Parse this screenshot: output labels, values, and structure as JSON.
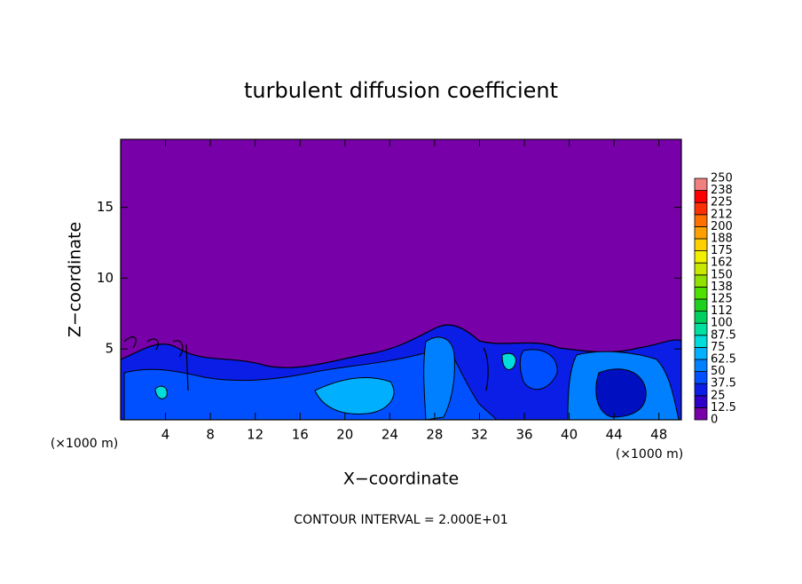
{
  "chart_data": {
    "type": "contour",
    "title": "turbulent diffusion coefficient",
    "x_label": "X−coordinate",
    "y_label": "Z−coordinate",
    "x_unit_label": "(×1000 m)",
    "y_unit_label": "(×1000 m)",
    "footer": "CONTOUR INTERVAL = 2.000E+01",
    "xlim": [
      0,
      50
    ],
    "ylim": [
      0,
      19.8
    ],
    "xticks": [
      4,
      8,
      12,
      16,
      20,
      24,
      28,
      32,
      36,
      40,
      44,
      48
    ],
    "yticks": [
      5,
      10,
      15
    ],
    "colorbar": {
      "levels": [
        0,
        12.5,
        25,
        37.5,
        50,
        62.5,
        75,
        87.5,
        100,
        112,
        125,
        138,
        150,
        162,
        175,
        188,
        200,
        212,
        225,
        238,
        250
      ],
      "colors": [
        "#7800a8",
        "#3000c8",
        "#0a1ee6",
        "#0050ff",
        "#0080ff",
        "#00b0ff",
        "#00dcdc",
        "#00e0a0",
        "#00d060",
        "#20d020",
        "#50e000",
        "#90e000",
        "#c8e800",
        "#f0f000",
        "#ffd000",
        "#ffa000",
        "#ff7000",
        "#ff3000",
        "#ff0000",
        "#f08080"
      ]
    }
  }
}
